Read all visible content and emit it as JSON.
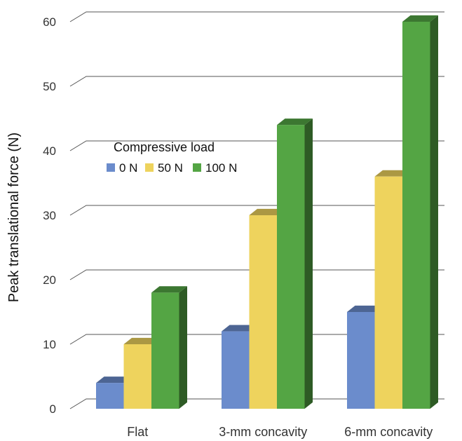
{
  "chart_data": {
    "type": "bar",
    "title": "",
    "xlabel": "",
    "ylabel": "Peak translational force (N)",
    "ylim": [
      0,
      60
    ],
    "yticks": [
      0,
      10,
      20,
      30,
      40,
      50,
      60
    ],
    "grid": true,
    "style": "3d",
    "categories": [
      "Flat",
      "3-mm concavity",
      "6-mm concavity"
    ],
    "legend": {
      "title": "Compressive load",
      "placement": "upper-left"
    },
    "series": [
      {
        "name": "0 N",
        "values": [
          4,
          12,
          15
        ],
        "color": "#6b8ccc"
      },
      {
        "name": "50 N",
        "values": [
          10,
          30,
          36
        ],
        "color": "#eed35d"
      },
      {
        "name": "100 N",
        "values": [
          18,
          44,
          60
        ],
        "color": "#54a544"
      }
    ]
  }
}
